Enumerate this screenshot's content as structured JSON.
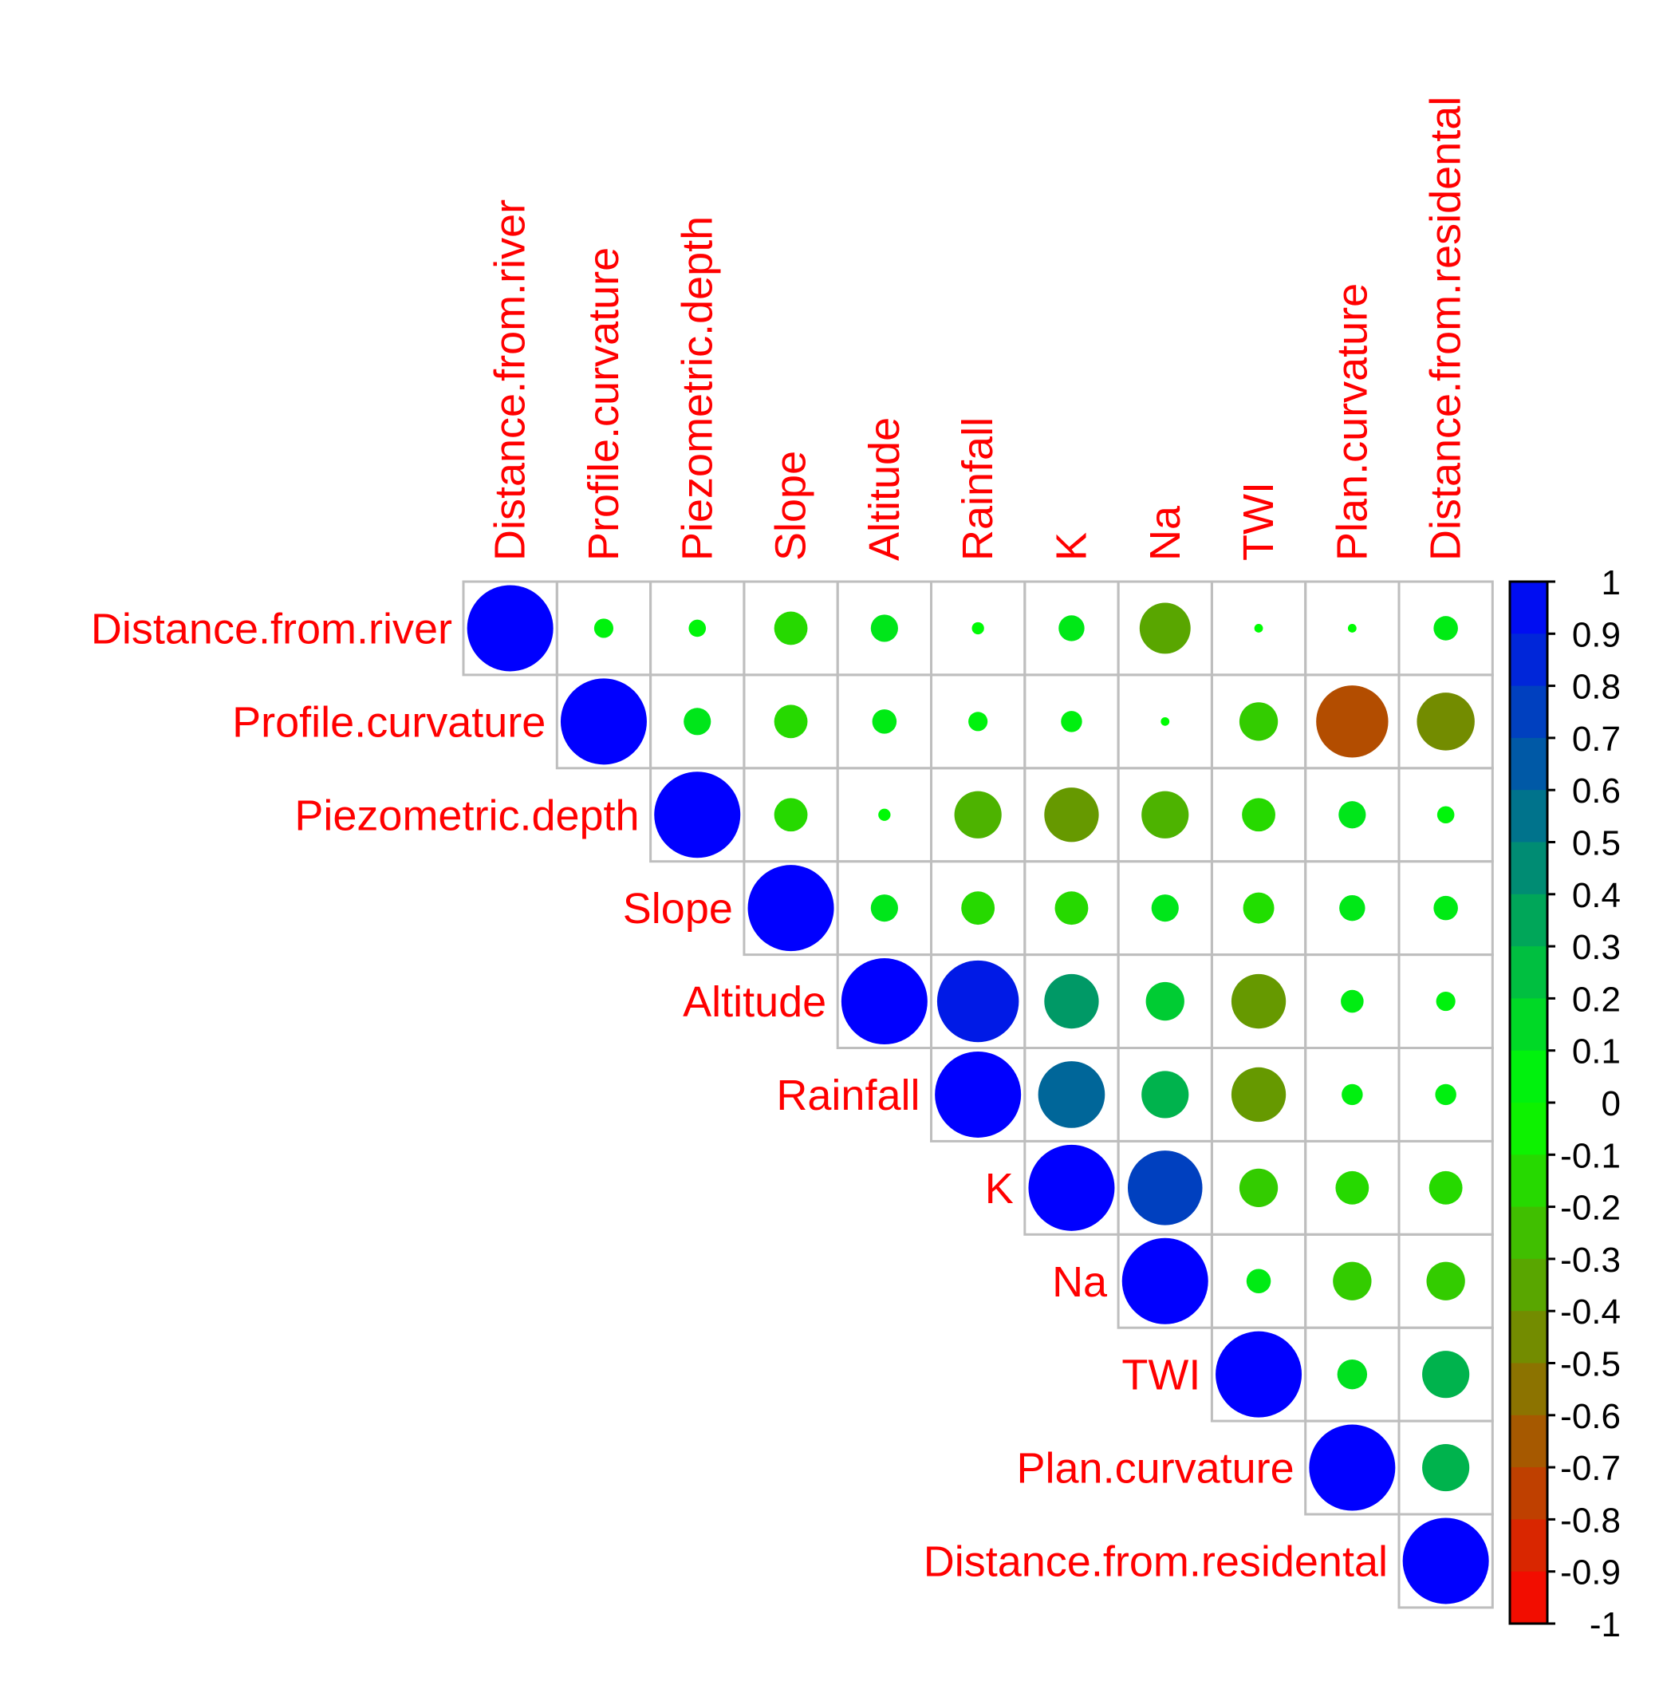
{
  "chart_data": {
    "type": "heatmap",
    "style": "correlation matrix (upper triangle, circles)",
    "variables": [
      "Distance.from.river",
      "Profile.curvature",
      "Piezometric.depth",
      "Slope",
      "Altitude",
      "Rainfall",
      "K",
      "Na",
      "TWI",
      "Plan.curvature",
      "Distance.from.residental"
    ],
    "upper_triangle_rows": [
      [
        1,
        0.05,
        0.04,
        -0.15,
        0.1,
        0.02,
        0.09,
        -0.35,
        0.01,
        0.01,
        0.08
      ],
      [
        1,
        0.1,
        -0.15,
        0.08,
        0.05,
        0.06,
        0.01,
        -0.2,
        -0.7,
        -0.45
      ],
      [
        1,
        -0.15,
        0.02,
        -0.3,
        -0.4,
        -0.3,
        -0.15,
        0.1,
        0.04
      ],
      [
        1,
        0.1,
        -0.15,
        -0.15,
        0.1,
        -0.13,
        0.09,
        0.08
      ],
      [
        1,
        0.9,
        0.4,
        0.2,
        -0.4,
        0.07,
        0.05
      ],
      [
        1,
        0.6,
        0.3,
        -0.4,
        0.06,
        0.06
      ],
      [
        1,
        0.75,
        -0.2,
        -0.15,
        -0.15
      ],
      [
        1,
        0.08,
        -0.2,
        -0.2
      ],
      [
        1,
        0.12,
        0.3
      ],
      [
        1,
        0.3
      ],
      [
        1
      ]
    ],
    "colorbar": {
      "ticks": [
        "1",
        "0.9",
        "0.8",
        "0.7",
        "0.6",
        "0.5",
        "0.4",
        "0.3",
        "0.2",
        "0.1",
        "0",
        "-0.1",
        "-0.2",
        "-0.3",
        "-0.4",
        "-0.5",
        "-0.6",
        "-0.7",
        "-0.8",
        "-0.9",
        "-1"
      ],
      "range": [
        -1,
        1
      ],
      "colors": {
        "positive": "#0000ff",
        "zero": "#00ff00",
        "negative": "#ff0000"
      }
    },
    "label_color": "#ff0000",
    "grid_color": "#bebebe"
  }
}
